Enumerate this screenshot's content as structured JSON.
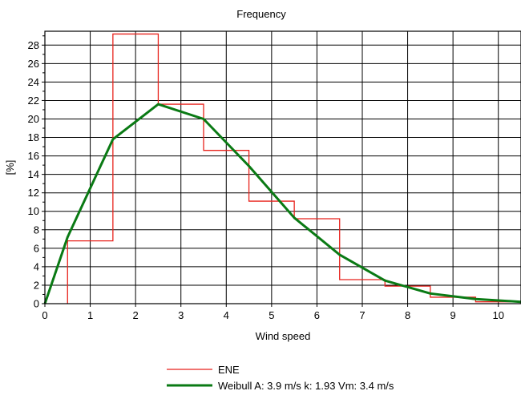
{
  "chart_data": {
    "type": "line",
    "title": "Frequency",
    "xlabel": "Wind speed",
    "ylabel": "[%]",
    "xlim": [
      0,
      10.5
    ],
    "ylim": [
      0,
      29.5
    ],
    "x_ticks": [
      0,
      1,
      2,
      3,
      4,
      5,
      6,
      7,
      8,
      9,
      10
    ],
    "y_ticks": [
      0,
      2,
      4,
      6,
      8,
      10,
      12,
      14,
      16,
      18,
      20,
      22,
      24,
      26,
      28
    ],
    "grid": true,
    "legend_position": "bottom",
    "series": [
      {
        "name": "ENE",
        "style": "step",
        "color": "#e8221c",
        "bins": [
          {
            "from": 0.5,
            "to": 1.5,
            "value": 6.8
          },
          {
            "from": 1.5,
            "to": 2.5,
            "value": 29.2
          },
          {
            "from": 2.5,
            "to": 3.5,
            "value": 21.6
          },
          {
            "from": 3.5,
            "to": 4.5,
            "value": 16.6
          },
          {
            "from": 4.5,
            "to": 5.5,
            "value": 11.1
          },
          {
            "from": 5.5,
            "to": 6.5,
            "value": 9.2
          },
          {
            "from": 6.5,
            "to": 7.5,
            "value": 2.6
          },
          {
            "from": 7.5,
            "to": 8.5,
            "value": 1.9
          },
          {
            "from": 8.5,
            "to": 9.5,
            "value": 0.7
          },
          {
            "from": 9.5,
            "to": 10.5,
            "value": 0.2
          }
        ]
      },
      {
        "name": "Weibull A: 3.9 m/s k: 1.93 Vm: 3.4 m/s",
        "style": "line",
        "color": "#0a7a14",
        "x": [
          0,
          0.5,
          1.5,
          2.5,
          3.5,
          4.5,
          5.5,
          6.5,
          7.5,
          8.5,
          9.5,
          10.5
        ],
        "y": [
          0,
          7.2,
          17.8,
          21.6,
          20.0,
          14.9,
          9.3,
          5.3,
          2.5,
          1.1,
          0.5,
          0.2
        ]
      }
    ]
  }
}
